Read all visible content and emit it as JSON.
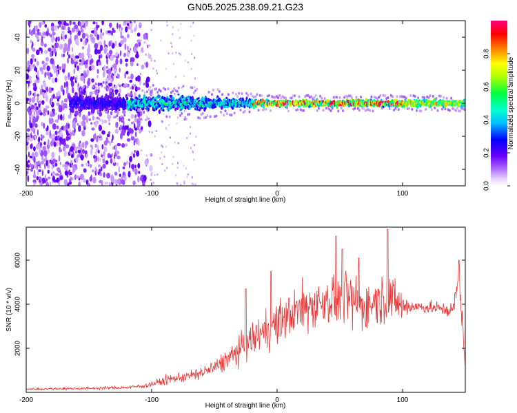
{
  "title": "GN05.2025.238.09.21.G23",
  "chart_data": [
    {
      "type": "heatmap",
      "title": "GN05.2025.238.09.21.G23",
      "xlabel": "Height of straight line (km)",
      "ylabel": "Frequency (Hz)",
      "xlim": [
        -200,
        150
      ],
      "ylim": [
        -50,
        50
      ],
      "xticks": [
        -200,
        -100,
        0,
        100
      ],
      "yticks": [
        -40,
        -20,
        0,
        20,
        40
      ],
      "colorbar": {
        "label": "Normalized spectral amplitude",
        "range": [
          0,
          1
        ],
        "ticks": [
          "0.0",
          "0.2",
          "0.4",
          "0.6",
          "0.8"
        ],
        "tick_values": [
          0,
          0.2,
          0.4,
          0.6,
          0.8
        ],
        "colormap": "rainbow (white-violet-blue-cyan-green-yellow-red-magenta)"
      },
      "description_data": {
        "noise_region_x": [
          -200,
          -105
        ],
        "band_center_frequency": 0,
        "band_start_x": -165,
        "band_halfwidth_hz_at_x": [
          [
            -150,
            7
          ],
          [
            -100,
            6
          ],
          [
            -60,
            5
          ],
          [
            -20,
            3
          ],
          [
            0,
            2.5
          ],
          [
            50,
            2.5
          ],
          [
            100,
            2.5
          ],
          [
            150,
            2.5
          ]
        ],
        "peak_amplitude_x_range": [
          -20,
          100
        ]
      }
    },
    {
      "type": "line",
      "xlabel": "Height of straight line (km)",
      "ylabel": "SNR (10 * v/v)",
      "xlim": [
        -200,
        150
      ],
      "ylim": [
        0,
        7500
      ],
      "xticks": [
        -200,
        -100,
        0,
        100
      ],
      "yticks": [
        2000,
        4000,
        6000
      ],
      "series": [
        {
          "name": "SNR",
          "color": "#ee3333",
          "envelope_x": [
            -200,
            -150,
            -120,
            -105,
            -95,
            -85,
            -75,
            -65,
            -50,
            -40,
            -30,
            -20,
            -10,
            0,
            10,
            20,
            30,
            40,
            50,
            60,
            70,
            80,
            90,
            95,
            100,
            110,
            120,
            130,
            140,
            145,
            148,
            150
          ],
          "envelope_mean": [
            150,
            180,
            220,
            300,
            450,
            600,
            700,
            800,
            1100,
            1500,
            1900,
            2400,
            2800,
            3100,
            3500,
            3800,
            4000,
            4200,
            4300,
            4100,
            3900,
            4200,
            4300,
            4100,
            3900,
            3900,
            3850,
            3800,
            3700,
            5200,
            3000,
            1200
          ],
          "envelope_spread": [
            60,
            70,
            80,
            120,
            200,
            250,
            280,
            300,
            400,
            550,
            700,
            900,
            1000,
            1100,
            1200,
            1300,
            1300,
            1300,
            1500,
            1400,
            1300,
            1200,
            1300,
            1000,
            800,
            300,
            300,
            350,
            400,
            600,
            600,
            500
          ],
          "peaks": [
            [
              -25,
              4700
            ],
            [
              -5,
              5500
            ],
            [
              47,
              7100
            ],
            [
              52,
              6500
            ],
            [
              65,
              6100
            ],
            [
              88,
              7400
            ],
            [
              145,
              6000
            ]
          ]
        }
      ]
    }
  ]
}
